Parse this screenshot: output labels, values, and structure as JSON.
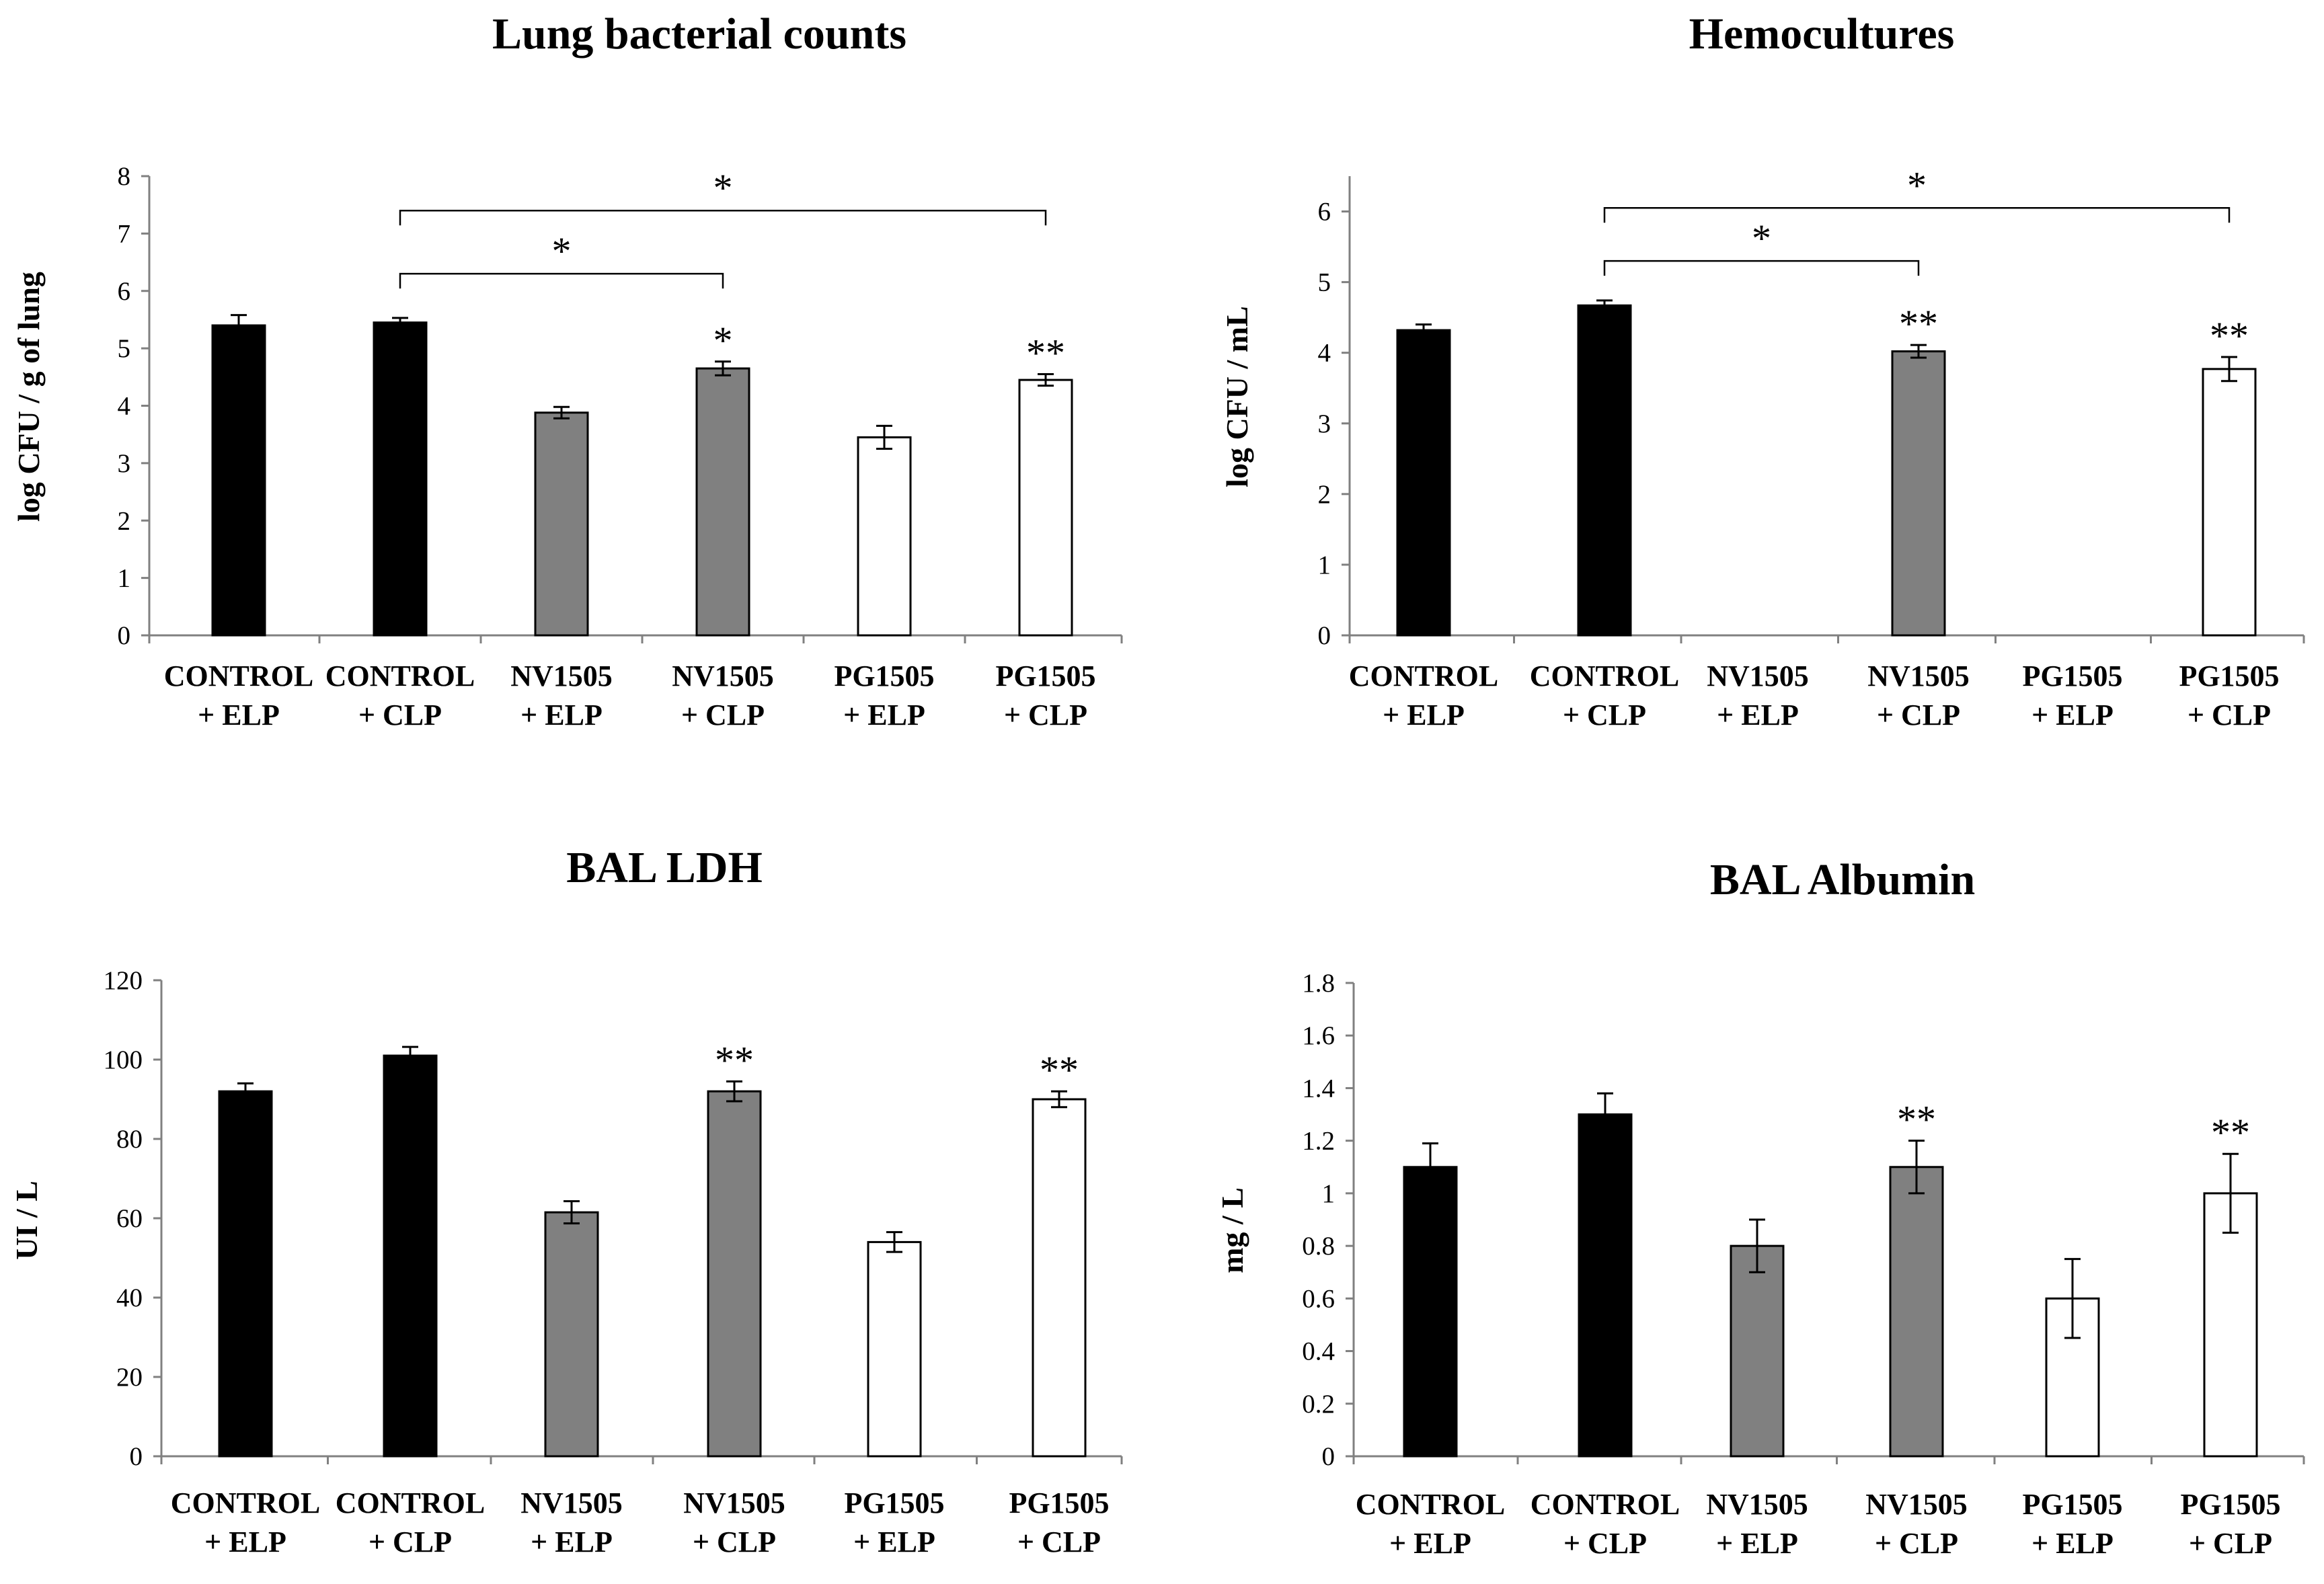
{
  "chart_data": [
    {
      "type": "bar",
      "title": "Lung bacterial counts",
      "xlabel": "",
      "ylabel": "log CFU / g of lung",
      "ylim": [
        0,
        8
      ],
      "yticks": [
        "0",
        "1",
        "2",
        "3",
        "4",
        "5",
        "6",
        "7",
        "8"
      ],
      "categories": [
        {
          "line1": "CONTROL",
          "line2": "+ ELP"
        },
        {
          "line1": "CONTROL",
          "line2": "+ CLP"
        },
        {
          "line1": "NV1505",
          "line2": "+ ELP"
        },
        {
          "line1": "NV1505",
          "line2": "+ CLP"
        },
        {
          "line1": "PG1505",
          "line2": "+ ELP"
        },
        {
          "line1": "PG1505",
          "line2": "+ CLP"
        }
      ],
      "values": [
        5.4,
        5.45,
        3.88,
        4.65,
        3.45,
        4.45
      ],
      "errors": [
        0.18,
        0.08,
        0.1,
        0.12,
        0.2,
        0.1
      ],
      "bar_colors": [
        "#000000",
        "#000000",
        "#808080",
        "#808080",
        "#ffffff",
        "#ffffff"
      ],
      "bar_marks": [
        "",
        "",
        "",
        "*",
        "",
        "**"
      ],
      "brackets": [
        {
          "from": 1,
          "to": 3,
          "label": "*",
          "level": 6.3
        },
        {
          "from": 1,
          "to": 5,
          "label": "*",
          "level": 7.4
        }
      ]
    },
    {
      "type": "bar",
      "title": "Hemocultures",
      "xlabel": "",
      "ylabel": "log CFU / mL",
      "ylim": [
        0,
        6.5
      ],
      "yticks": [
        "0",
        "1",
        "2",
        "3",
        "4",
        "5",
        "6"
      ],
      "categories": [
        {
          "line1": "CONTROL",
          "line2": "+ ELP"
        },
        {
          "line1": "CONTROL",
          "line2": "+ CLP"
        },
        {
          "line1": "NV1505",
          "line2": "+ ELP"
        },
        {
          "line1": "NV1505",
          "line2": "+ CLP"
        },
        {
          "line1": "PG1505",
          "line2": "+ ELP"
        },
        {
          "line1": "PG1505",
          "line2": "+ CLP"
        }
      ],
      "values": [
        4.32,
        4.67,
        null,
        4.02,
        null,
        3.77
      ],
      "errors": [
        0.08,
        0.07,
        null,
        0.09,
        null,
        0.17
      ],
      "bar_colors": [
        "#000000",
        "#000000",
        "#808080",
        "#808080",
        "#ffffff",
        "#ffffff"
      ],
      "bar_marks": [
        "",
        "",
        "",
        "**",
        "",
        "**"
      ],
      "brackets": [
        {
          "from": 1,
          "to": 3,
          "label": "*",
          "level": 5.3
        },
        {
          "from": 1,
          "to": 5,
          "label": "*",
          "level": 6.05
        }
      ]
    },
    {
      "type": "bar",
      "title": "BAL LDH",
      "xlabel": "",
      "ylabel": "UI / L",
      "ylim": [
        0,
        120
      ],
      "yticks": [
        "0",
        "20",
        "40",
        "60",
        "80",
        "100",
        "120"
      ],
      "categories": [
        {
          "line1": "CONTROL",
          "line2": "+ ELP"
        },
        {
          "line1": "CONTROL",
          "line2": "+ CLP"
        },
        {
          "line1": "NV1505",
          "line2": "+ ELP"
        },
        {
          "line1": "NV1505",
          "line2": "+ CLP"
        },
        {
          "line1": "PG1505",
          "line2": "+ ELP"
        },
        {
          "line1": "PG1505",
          "line2": "+ CLP"
        }
      ],
      "values": [
        92,
        101,
        61.5,
        92,
        54,
        90
      ],
      "errors": [
        2,
        2.2,
        2.8,
        2.5,
        2.5,
        2
      ],
      "bar_colors": [
        "#000000",
        "#000000",
        "#808080",
        "#808080",
        "#ffffff",
        "#ffffff"
      ],
      "bar_marks": [
        "",
        "",
        "",
        "**",
        "",
        "**"
      ],
      "brackets": []
    },
    {
      "type": "bar",
      "title": "BAL Albumin",
      "xlabel": "",
      "ylabel": "mg / L",
      "ylim": [
        0,
        1.8
      ],
      "yticks": [
        "0",
        "0.2",
        "0.4",
        "0.6",
        "0.8",
        "1",
        "1.2",
        "1.4",
        "1.6",
        "1.8"
      ],
      "categories": [
        {
          "line1": "CONTROL",
          "line2": "+ ELP"
        },
        {
          "line1": "CONTROL",
          "line2": "+ CLP"
        },
        {
          "line1": "NV1505",
          "line2": "+ ELP"
        },
        {
          "line1": "NV1505",
          "line2": "+ CLP"
        },
        {
          "line1": "PG1505",
          "line2": "+ ELP"
        },
        {
          "line1": "PG1505",
          "line2": "+ CLP"
        }
      ],
      "values": [
        1.1,
        1.3,
        0.8,
        1.1,
        0.6,
        1.0
      ],
      "errors": [
        0.09,
        0.08,
        0.1,
        0.1,
        0.15,
        0.15
      ],
      "bar_colors": [
        "#000000",
        "#000000",
        "#808080",
        "#808080",
        "#ffffff",
        "#ffffff"
      ],
      "bar_marks": [
        "",
        "",
        "",
        "**",
        "",
        "**"
      ],
      "brackets": []
    }
  ]
}
